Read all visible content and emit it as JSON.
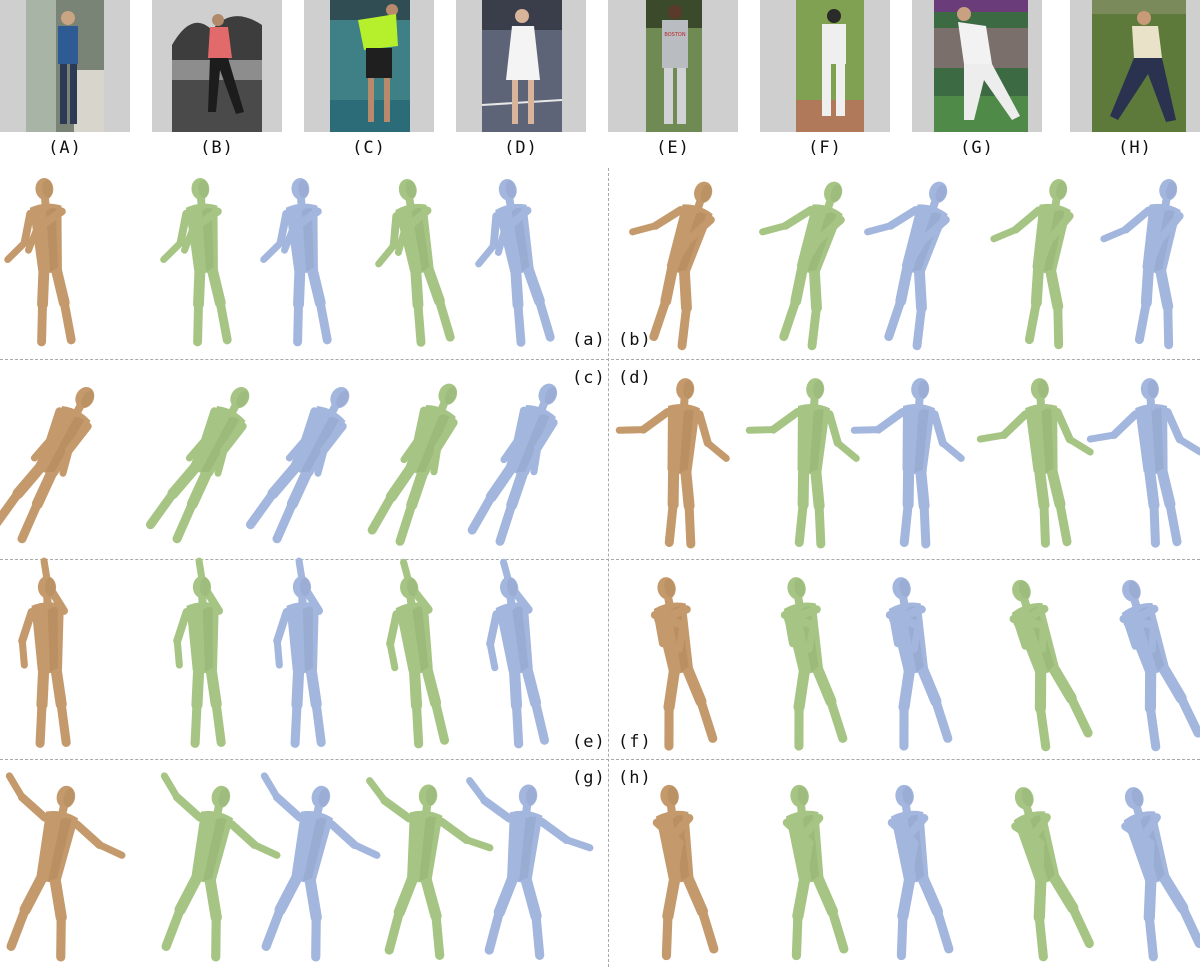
{
  "photos": [
    {
      "label": "(A)"
    },
    {
      "label": "(B)"
    },
    {
      "label": "(C)"
    },
    {
      "label": "(D)"
    },
    {
      "label": "(E)"
    },
    {
      "label": "(F)"
    },
    {
      "label": "(G)"
    },
    {
      "label": "(H)"
    }
  ],
  "jersey_text": "BOSTON",
  "panels": [
    {
      "label": "(a)"
    },
    {
      "label": "(b)"
    },
    {
      "label": "(c)"
    },
    {
      "label": "(d)"
    },
    {
      "label": "(e)"
    },
    {
      "label": "(f)"
    },
    {
      "label": "(g)"
    },
    {
      "label": "(h)"
    }
  ],
  "colors": {
    "body_model": "#c49a6c",
    "shape_model": "#a6c585",
    "clothed_model": "#a3b6dd",
    "photo_border": "#cfcfcf",
    "separator": "#a9a9a9"
  },
  "mesh_types": [
    "body-model",
    "shape-model",
    "clothed-model"
  ]
}
